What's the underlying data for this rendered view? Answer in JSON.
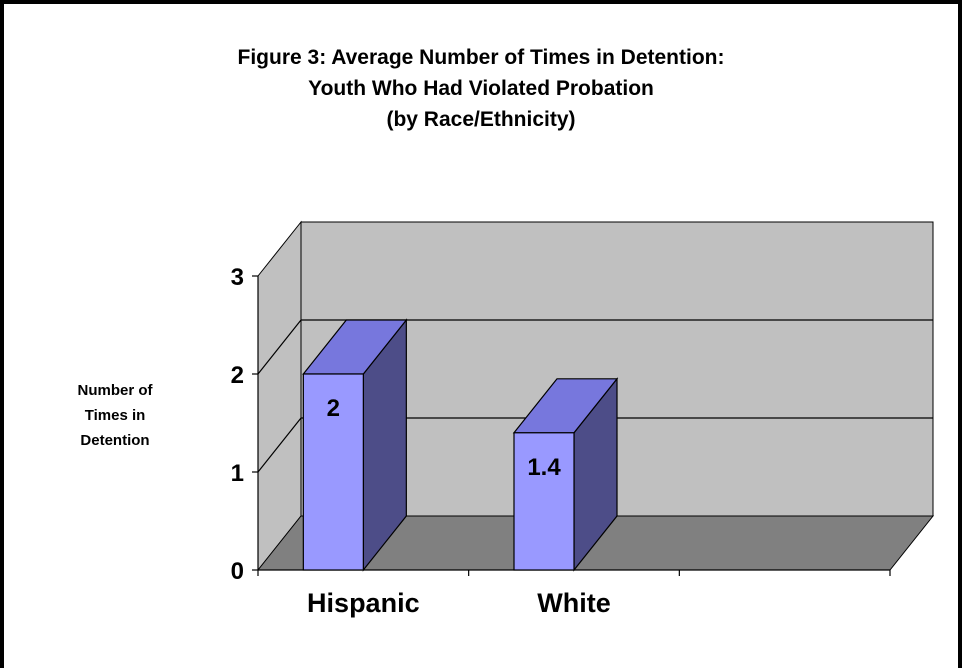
{
  "chart_data": {
    "type": "bar",
    "title_lines": [
      "Figure 3: Average Number of Times in Detention:",
      "Youth Who Had Violated Probation",
      "(by Race/Ethnicity)"
    ],
    "ylabel_lines": [
      "Number of",
      "Times in",
      "Detention"
    ],
    "xlabel": "",
    "categories": [
      "Hispanic",
      "White"
    ],
    "values": [
      2,
      1.4
    ],
    "value_labels": [
      "2",
      "1.4"
    ],
    "ylim": [
      0,
      3
    ],
    "yticks": [
      0,
      1,
      2,
      3
    ],
    "grid": true,
    "legend": "none",
    "style": "3d-column",
    "colors": {
      "bar_front": "#9999ff",
      "bar_top": "#7777dd",
      "bar_side": "#4d4d88",
      "wall": "#c0c0c0",
      "floor": "#808080"
    }
  }
}
